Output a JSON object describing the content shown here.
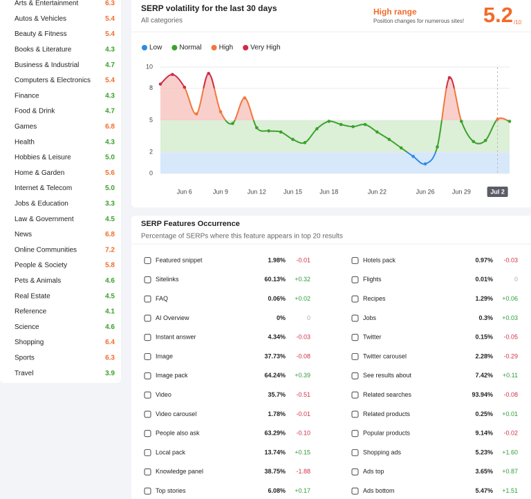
{
  "sidebar": {
    "items": [
      {
        "name": "Arts & Entertainment",
        "score": "6.3",
        "color": "#f26b2a"
      },
      {
        "name": "Autos & Vehicles",
        "score": "5.4",
        "color": "#f26b2a"
      },
      {
        "name": "Beauty & Fitness",
        "score": "5.4",
        "color": "#f26b2a"
      },
      {
        "name": "Books & Literature",
        "score": "4.3",
        "color": "#3b9e2a"
      },
      {
        "name": "Business & Industrial",
        "score": "4.7",
        "color": "#3b9e2a"
      },
      {
        "name": "Computers & Electronics",
        "score": "5.4",
        "color": "#f26b2a"
      },
      {
        "name": "Finance",
        "score": "4.3",
        "color": "#3b9e2a"
      },
      {
        "name": "Food & Drink",
        "score": "4.7",
        "color": "#3b9e2a"
      },
      {
        "name": "Games",
        "score": "6.8",
        "color": "#f26b2a"
      },
      {
        "name": "Health",
        "score": "4.3",
        "color": "#3b9e2a"
      },
      {
        "name": "Hobbies & Leisure",
        "score": "5.0",
        "color": "#3b9e2a"
      },
      {
        "name": "Home & Garden",
        "score": "5.6",
        "color": "#f26b2a"
      },
      {
        "name": "Internet & Telecom",
        "score": "5.0",
        "color": "#3b9e2a"
      },
      {
        "name": "Jobs & Education",
        "score": "3.3",
        "color": "#3b9e2a"
      },
      {
        "name": "Law & Government",
        "score": "4.5",
        "color": "#3b9e2a"
      },
      {
        "name": "News",
        "score": "6.8",
        "color": "#f26b2a"
      },
      {
        "name": "Online Communities",
        "score": "7.2",
        "color": "#f26b2a"
      },
      {
        "name": "People & Society",
        "score": "5.8",
        "color": "#f26b2a"
      },
      {
        "name": "Pets & Animals",
        "score": "4.6",
        "color": "#3b9e2a"
      },
      {
        "name": "Real Estate",
        "score": "4.5",
        "color": "#3b9e2a"
      },
      {
        "name": "Reference",
        "score": "4.1",
        "color": "#3b9e2a"
      },
      {
        "name": "Science",
        "score": "4.6",
        "color": "#3b9e2a"
      },
      {
        "name": "Shopping",
        "score": "6.4",
        "color": "#f26b2a"
      },
      {
        "name": "Sports",
        "score": "6.3",
        "color": "#f26b2a"
      },
      {
        "name": "Travel",
        "score": "3.9",
        "color": "#3b9e2a"
      }
    ]
  },
  "summary": {
    "range_label": "High range",
    "range_note": "Position changes for numerous sites!",
    "score": 5.2,
    "score_suffix": "/10"
  },
  "chart_data": {
    "type": "line",
    "title": "SERP volatility for the last 30 days",
    "subtitle": "All categories",
    "legend": [
      {
        "name": "Low",
        "color": "#2f8ae6"
      },
      {
        "name": "Normal",
        "color": "#3ca12c"
      },
      {
        "name": "High",
        "color": "#f2773a"
      },
      {
        "name": "Very High",
        "color": "#cf2b48"
      }
    ],
    "categories": [
      null,
      null,
      "Jun 6",
      null,
      null,
      "Jun 9",
      null,
      null,
      "Jun 12",
      null,
      null,
      "Jun 15",
      null,
      null,
      "Jun 18",
      null,
      null,
      null,
      "Jun 22",
      null,
      null,
      null,
      "Jun 26",
      null,
      null,
      "Jun 29",
      null,
      null,
      "Jul 2",
      null
    ],
    "values": [
      8.4,
      9.3,
      8.1,
      5.6,
      9.4,
      5.8,
      4.7,
      7.1,
      4.3,
      4.0,
      3.9,
      3.2,
      2.9,
      4.2,
      4.9,
      4.6,
      4.4,
      4.6,
      3.9,
      3.2,
      2.4,
      1.6,
      0.9,
      2.5,
      9.0,
      4.9,
      3.0,
      3.1,
      5.1,
      4.9
    ],
    "ylim": [
      0,
      10
    ],
    "yticks": [
      0,
      2,
      5,
      8,
      10
    ],
    "grid": true
  },
  "features": {
    "title": "SERP Features Occurrence",
    "subtitle": "Percentage of SERPs where this feature appears in top 20 results",
    "left": [
      {
        "name": "Featured snippet",
        "value": "1.98%",
        "change": "-0.01"
      },
      {
        "name": "Sitelinks",
        "value": "60.13%",
        "change": "+0.32"
      },
      {
        "name": "FAQ",
        "value": "0.06%",
        "change": "+0.02"
      },
      {
        "name": "AI Overview",
        "value": "0%",
        "change": "0"
      },
      {
        "name": "Instant answer",
        "value": "4.34%",
        "change": "-0.03"
      },
      {
        "name": "Image",
        "value": "37.73%",
        "change": "-0.08"
      },
      {
        "name": "Image pack",
        "value": "64.24%",
        "change": "+0.39"
      },
      {
        "name": "Video",
        "value": "35.7%",
        "change": "-0.51"
      },
      {
        "name": "Video carousel",
        "value": "1.78%",
        "change": "-0.01"
      },
      {
        "name": "People also ask",
        "value": "63.29%",
        "change": "-0.10"
      },
      {
        "name": "Local pack",
        "value": "13.74%",
        "change": "+0.15"
      },
      {
        "name": "Knowledge panel",
        "value": "38.75%",
        "change": "-1.88"
      },
      {
        "name": "Top stories",
        "value": "6.08%",
        "change": "+0.17"
      }
    ],
    "right": [
      {
        "name": "Hotels pack",
        "value": "0.97%",
        "change": "-0.03"
      },
      {
        "name": "Flights",
        "value": "0.01%",
        "change": "0"
      },
      {
        "name": "Recipes",
        "value": "1.29%",
        "change": "+0.06"
      },
      {
        "name": "Jobs",
        "value": "0.3%",
        "change": "+0.03"
      },
      {
        "name": "Twitter",
        "value": "0.15%",
        "change": "-0.05"
      },
      {
        "name": "Twitter carousel",
        "value": "2.28%",
        "change": "-0.29"
      },
      {
        "name": "See results about",
        "value": "7.42%",
        "change": "+0.11"
      },
      {
        "name": "Related searches",
        "value": "93.94%",
        "change": "-0.08"
      },
      {
        "name": "Related products",
        "value": "0.25%",
        "change": "+0.01"
      },
      {
        "name": "Popular products",
        "value": "9.14%",
        "change": "-0.02"
      },
      {
        "name": "Shopping ads",
        "value": "5.23%",
        "change": "+1.60"
      },
      {
        "name": "Ads top",
        "value": "3.65%",
        "change": "+0.87"
      },
      {
        "name": "Ads bottom",
        "value": "5.47%",
        "change": "+1.51"
      }
    ]
  }
}
